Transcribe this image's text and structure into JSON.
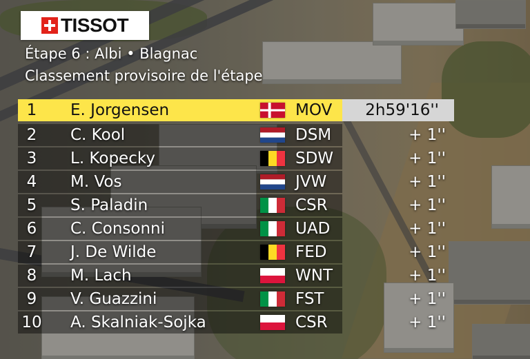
{
  "branding": {
    "logo_text": "TISSOT",
    "logo_icon": "swiss-cross-icon",
    "logo_color": "#e2231a"
  },
  "header": {
    "stage": "Étape 6 : Albi • Blagnac",
    "subtitle": "Classement provisoire de l'étape"
  },
  "colors": {
    "leader_band": "#fde54a",
    "leader_time_box": "#d6d6d6"
  },
  "standings": [
    {
      "pos": "1",
      "name": "E. Jorgensen",
      "flag": "denmark-flag",
      "team": "MOV",
      "time": "2h59'16''"
    },
    {
      "pos": "2",
      "name": "C. Kool",
      "flag": "netherlands-flag",
      "team": "DSM",
      "time": "+ 1''"
    },
    {
      "pos": "3",
      "name": "L. Kopecky",
      "flag": "belgium-flag",
      "team": "SDW",
      "time": "+ 1''"
    },
    {
      "pos": "4",
      "name": "M. Vos",
      "flag": "netherlands-flag",
      "team": "JVW",
      "time": "+ 1''"
    },
    {
      "pos": "5",
      "name": "S. Paladin",
      "flag": "italy-flag",
      "team": "CSR",
      "time": "+ 1''"
    },
    {
      "pos": "6",
      "name": "C. Consonni",
      "flag": "italy-flag",
      "team": "UAD",
      "time": "+ 1''"
    },
    {
      "pos": "7",
      "name": "J. De Wilde",
      "flag": "belgium-flag",
      "team": "FED",
      "time": "+ 1''"
    },
    {
      "pos": "8",
      "name": "M. Lach",
      "flag": "poland-flag",
      "team": "WNT",
      "time": "+ 1''"
    },
    {
      "pos": "9",
      "name": "V. Guazzini",
      "flag": "italy-flag",
      "team": "FST",
      "time": "+ 1''"
    },
    {
      "pos": "10",
      "name": "A. Skalniak-Sojka",
      "flag": "poland-flag",
      "team": "CSR",
      "time": "+ 1''"
    }
  ]
}
